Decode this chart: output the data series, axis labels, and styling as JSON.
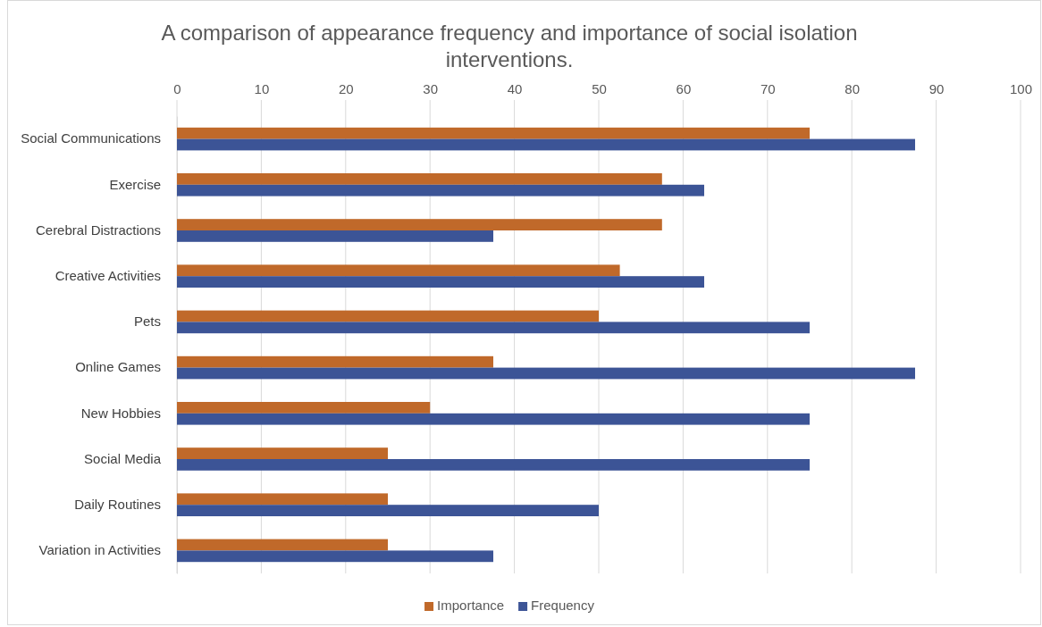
{
  "chart_data": {
    "type": "bar",
    "orientation": "horizontal",
    "title": "A comparison of appearance frequency and importance of social isolation interventions.",
    "categories": [
      "Social Communications",
      "Exercise",
      "Cerebral Distractions",
      "Creative Activities",
      "Pets",
      "Online Games",
      "New Hobbies",
      "Social Media",
      "Daily Routines",
      "Variation in Activities"
    ],
    "series": [
      {
        "name": "Importance",
        "color": "#c0692a",
        "values": [
          75,
          57.5,
          57.5,
          52.5,
          50,
          37.5,
          30,
          25,
          25,
          25
        ]
      },
      {
        "name": "Frequency",
        "color": "#3c5496",
        "values": [
          87.5,
          62.5,
          37.5,
          62.5,
          75,
          87.5,
          75,
          75,
          50,
          37.5
        ]
      }
    ],
    "xlim": [
      0,
      100
    ],
    "xticks": [
      0,
      10,
      20,
      30,
      40,
      50,
      60,
      70,
      80,
      90,
      100
    ],
    "grid": "x",
    "legend": "bottom"
  }
}
